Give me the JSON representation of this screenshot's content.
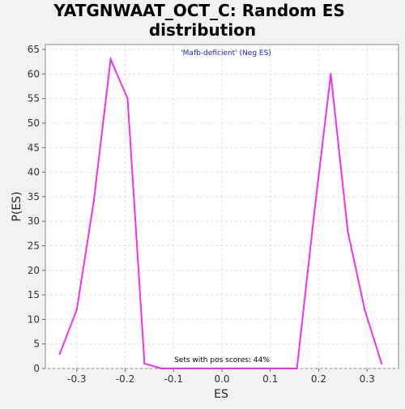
{
  "chart_data": {
    "type": "line",
    "title_line1": "YATGNWAAT_OCT_C: Random ES",
    "title_line2": "distribution",
    "xlabel": "ES",
    "ylabel": "P(ES)",
    "xlim": [
      -0.365,
      0.365
    ],
    "ylim": [
      0,
      66
    ],
    "x_ticks": [
      -0.3,
      -0.2,
      -0.1,
      0.0,
      0.1,
      0.2,
      0.3
    ],
    "x_tick_labels": [
      "-0.3",
      "-0.2",
      "-0.1",
      "0.0",
      "0.1",
      "0.2",
      "0.3"
    ],
    "y_ticks": [
      0,
      5,
      10,
      15,
      20,
      25,
      30,
      35,
      40,
      45,
      50,
      55,
      60,
      65
    ],
    "y_tick_labels": [
      "0",
      "5",
      "10",
      "15",
      "20",
      "25",
      "30",
      "35",
      "40",
      "45",
      "50",
      "55",
      "60",
      "65"
    ],
    "grid": true,
    "series_color": "#ee33ee",
    "annotation_color": "#2222cc",
    "annotations": {
      "top": "'Mafb-deficient' (Neg ES)",
      "bottom": "Sets with pos scores: 44%"
    },
    "series": [
      {
        "x": [
          -0.335,
          -0.3,
          -0.265,
          -0.23,
          -0.195,
          -0.16,
          -0.125,
          -0.09,
          -0.055,
          -0.02,
          0.015,
          0.05,
          0.085,
          0.12,
          0.155,
          0.19,
          0.225,
          0.26,
          0.295,
          0.33
        ],
        "values": [
          3,
          12,
          34,
          63,
          55,
          1,
          0,
          0,
          0,
          0,
          0,
          0,
          0,
          0,
          0,
          31,
          60,
          28,
          12,
          1
        ]
      }
    ]
  }
}
